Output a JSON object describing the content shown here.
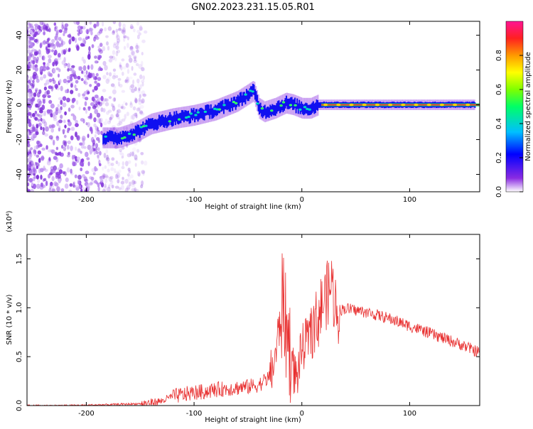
{
  "title": "GN02.2023.231.15.05.R01",
  "chart_data": [
    {
      "type": "heatmap",
      "xlabel": "Height of straight line (km)",
      "ylabel": "Frequency (Hz)",
      "xlim": [
        -255,
        165
      ],
      "ylim": [
        -50,
        48
      ],
      "x_ticks": [
        -200,
        -100,
        0,
        100
      ],
      "y_ticks": [
        -40,
        -20,
        0,
        20,
        40
      ],
      "colorbar": {
        "label": "Normalized spectral amplitude",
        "range": [
          0,
          1
        ],
        "ticks": [
          0.0,
          0.2,
          0.4,
          0.6,
          0.8
        ],
        "colormap": [
          "#ffffff",
          "#8a2be2",
          "#0000ff",
          "#00bfff",
          "#00ff66",
          "#7fff00",
          "#ffff00",
          "#ff9900",
          "#ff2020",
          "#ff1493"
        ]
      },
      "trace": {
        "x": [
          -185,
          -170,
          -155,
          -140,
          -120,
          -100,
          -80,
          -60,
          -45,
          -40,
          -35,
          -25,
          -15,
          -8,
          0,
          8,
          15,
          20,
          40,
          60,
          80,
          100,
          120,
          140,
          160
        ],
        "y": [
          -19,
          -19,
          -16,
          -11,
          -8,
          -6,
          -3,
          2,
          8,
          -2,
          -4,
          -2,
          1,
          0,
          -2,
          -2,
          0,
          0,
          0,
          0,
          0,
          0,
          0,
          0,
          0
        ]
      }
    },
    {
      "type": "line",
      "xlabel": "Height of straight line (km)",
      "ylabel": "SNR (10 * v/v)",
      "y_multiplier": "(x10⁴)",
      "xlim": [
        -255,
        165
      ],
      "ylim": [
        0,
        1.75
      ],
      "x_ticks": [
        -200,
        -100,
        0,
        100
      ],
      "y_ticks": [
        0.0,
        0.5,
        1.0,
        1.5
      ],
      "series": [
        {
          "color": "#e83030",
          "x": [
            -255,
            -220,
            -180,
            -150,
            -130,
            -120,
            -110,
            -100,
            -90,
            -80,
            -70,
            -60,
            -50,
            -40,
            -30,
            -25,
            -20,
            -17,
            -15,
            -12,
            -8,
            -5,
            0,
            5,
            10,
            15,
            20,
            25,
            28,
            30,
            35,
            40,
            50,
            60,
            70,
            80,
            90,
            100,
            110,
            120,
            130,
            140,
            150,
            160,
            165
          ],
          "y": [
            0.0,
            0.0,
            0.01,
            0.02,
            0.05,
            0.1,
            0.12,
            0.14,
            0.15,
            0.17,
            0.18,
            0.19,
            0.2,
            0.22,
            0.3,
            0.5,
            0.9,
            1.2,
            0.85,
            0.7,
            0.4,
            0.3,
            0.6,
            0.7,
            0.75,
            0.95,
            1.1,
            1.2,
            1.3,
            1.1,
            0.98,
            1.0,
            0.98,
            0.96,
            0.93,
            0.9,
            0.86,
            0.82,
            0.78,
            0.74,
            0.7,
            0.66,
            0.62,
            0.57,
            0.55
          ]
        }
      ]
    }
  ]
}
